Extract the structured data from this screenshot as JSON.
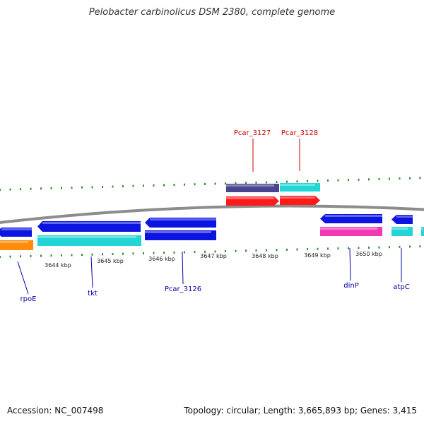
{
  "title": "Pelobacter carbinolicus DSM 2380, complete genome",
  "footer": {
    "accession": "Accession: NC_007498",
    "summary": "Topology: circular; Length: 3,665,893 bp; Genes: 3,415"
  },
  "colors": {
    "backbone": "#8c8c8c",
    "tick": "#2e8b2e",
    "label_red": "#cc0000",
    "label_blue": "#0000aa",
    "blue": "#0b14e0",
    "cyan": "#22d6d6",
    "orange": "#ff8c0a",
    "red": "#ff1a1a",
    "purple": "#4b4591",
    "magenta": "#f03ab4"
  },
  "kbp_labels": [
    "3644 kbp",
    "3645 kbp",
    "3646 kbp",
    "3647 kbp",
    "3648 kbp",
    "3649 kbp",
    "3650 kbp"
  ],
  "genes_top": [
    {
      "name": "Pcar_3127",
      "color": "label_red"
    },
    {
      "name": "Pcar_3128",
      "color": "label_red"
    }
  ],
  "genes_bottom": [
    {
      "name": "rpoE",
      "color": "label_blue"
    },
    {
      "name": "tkt",
      "color": "label_blue"
    },
    {
      "name": "Pcar_3126",
      "color": "label_blue"
    },
    {
      "name": "dinP",
      "color": "label_blue"
    },
    {
      "name": "atpC",
      "color": "label_blue"
    }
  ]
}
